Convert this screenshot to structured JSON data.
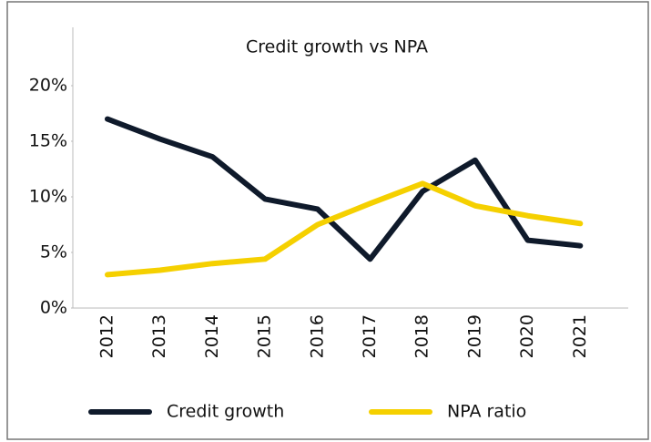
{
  "chart_data": {
    "type": "line",
    "title": "Credit growth vs NPA",
    "categories": [
      "2012",
      "2013",
      "2014",
      "2015",
      "2016",
      "2017",
      "2018",
      "2019",
      "2020",
      "2021"
    ],
    "series": [
      {
        "name": "Credit growth",
        "color": "#0f1a2b",
        "values": [
          17.0,
          15.2,
          13.6,
          9.8,
          8.9,
          4.4,
          10.5,
          13.3,
          6.1,
          5.6
        ]
      },
      {
        "name": "NPA ratio",
        "color": "#f5d000",
        "values": [
          3.0,
          3.4,
          4.0,
          4.4,
          7.5,
          9.4,
          11.2,
          9.2,
          8.3,
          7.6
        ]
      }
    ],
    "ylim": [
      0,
      20
    ],
    "yticks": [
      {
        "value": 0,
        "label": "0%"
      },
      {
        "value": 5,
        "label": "5%"
      },
      {
        "value": 10,
        "label": "10%"
      },
      {
        "value": 15,
        "label": "15%"
      },
      {
        "value": 20,
        "label": "20%"
      }
    ],
    "grid": false,
    "legend": "bottom"
  }
}
